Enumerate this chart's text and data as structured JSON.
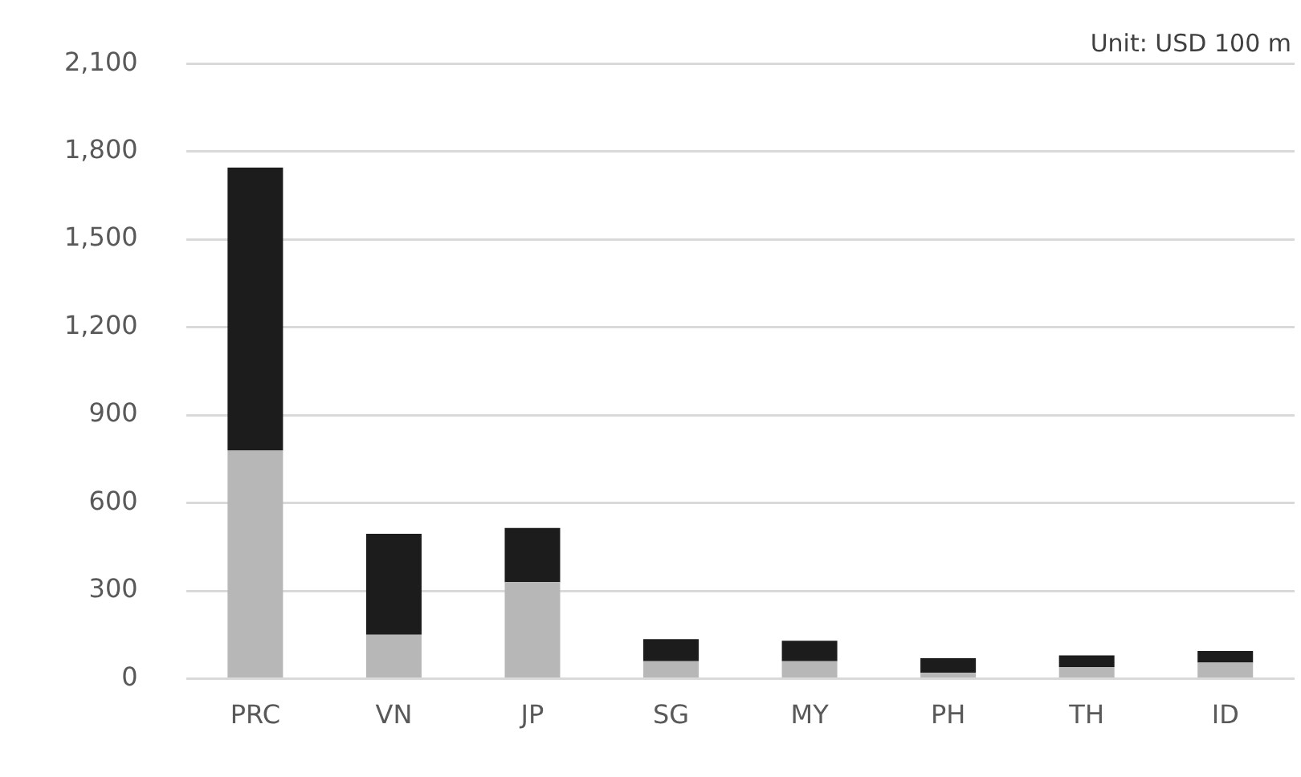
{
  "chart_data": {
    "type": "bar",
    "stacked": true,
    "categories": [
      "PRC",
      "VN",
      "JP",
      "SG",
      "MY",
      "PH",
      "TH",
      "ID"
    ],
    "series": [
      {
        "color": "#b7b7b7",
        "values": [
          780,
          150,
          330,
          60,
          60,
          20,
          40,
          55
        ]
      },
      {
        "color": "#1c1c1c",
        "values": [
          965,
          345,
          185,
          75,
          70,
          50,
          40,
          40
        ]
      }
    ],
    "ylim": [
      0,
      2100
    ],
    "yticks": [
      0,
      300,
      600,
      900,
      {
        "value": 1200,
        "label": "1,200"
      },
      {
        "value": 1500,
        "label": "1,500"
      },
      {
        "value": 1800,
        "label": "1,800"
      },
      {
        "value": 2100,
        "label": "2,100"
      }
    ],
    "grid": "y",
    "legend": false,
    "annotations": [
      "Unit: USD 100 m"
    ]
  }
}
